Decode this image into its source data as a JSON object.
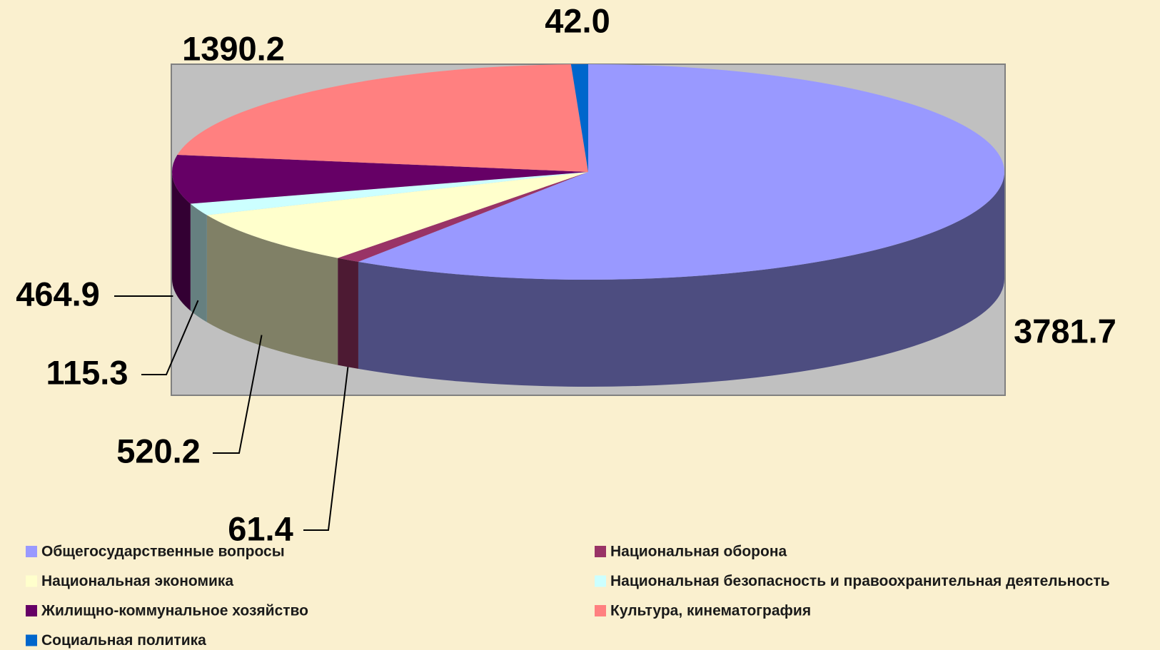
{
  "chart_data": {
    "type": "pie3d",
    "categories": [
      "Общегосударственные вопросы",
      "Национальная оборона",
      "Национальная экономика",
      "Национальная безопасность и правоохранительная деятельность",
      "Жилищно-коммунальное хозяйство",
      "Культура, кинематография",
      "Социальная политика"
    ],
    "values": [
      3781.7,
      61.4,
      520.2,
      115.3,
      464.9,
      1390.2,
      42
    ],
    "value_labels": [
      "3781.7",
      "61.4",
      "520.2",
      "115.3",
      "464.9",
      "1390.2",
      "42.0"
    ],
    "colors": [
      "#9999ff",
      "#993366",
      "#ffffcc",
      "#ccffff",
      "#660066",
      "#ff8080",
      "#0066cc"
    ]
  }
}
